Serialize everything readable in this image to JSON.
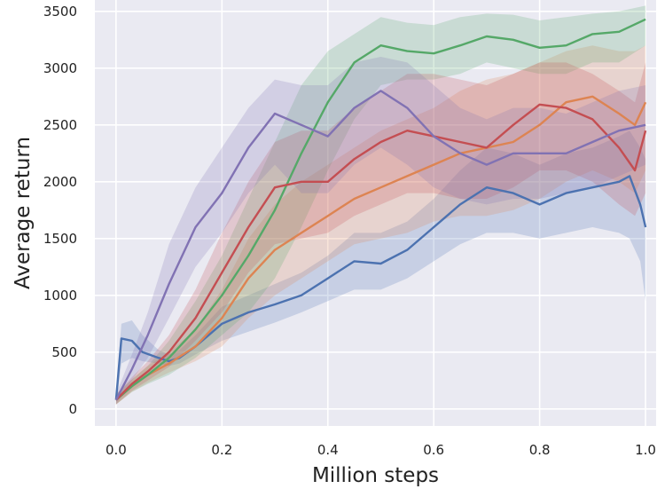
{
  "chart_data": {
    "type": "line",
    "title": "",
    "xlabel": "Million steps",
    "ylabel": "Average return",
    "xlim": [
      -0.04,
      1.02
    ],
    "ylim": [
      -150,
      3600
    ],
    "x_ticks": [
      0.0,
      0.2,
      0.4,
      0.6,
      0.8,
      1.0
    ],
    "x_tick_labels": [
      "0.0",
      "0.2",
      "0.4",
      "0.6",
      "0.8",
      "1.0"
    ],
    "y_ticks": [
      0,
      500,
      1000,
      1500,
      2000,
      2500,
      3000,
      3500
    ],
    "y_tick_labels": [
      "0",
      "500",
      "1000",
      "1500",
      "2000",
      "2500",
      "3000",
      "3500"
    ],
    "grid": true,
    "legend": "none",
    "background_color": "#eaeaf2",
    "series": [
      {
        "color": "#4c72b0",
        "x": [
          0.0,
          0.01,
          0.03,
          0.05,
          0.08,
          0.1,
          0.12,
          0.15,
          0.2,
          0.25,
          0.3,
          0.35,
          0.4,
          0.45,
          0.5,
          0.55,
          0.6,
          0.65,
          0.7,
          0.75,
          0.8,
          0.85,
          0.9,
          0.95,
          0.97,
          0.99,
          1.0
        ],
        "y": [
          80,
          620,
          600,
          500,
          450,
          420,
          450,
          550,
          750,
          850,
          920,
          1000,
          1150,
          1300,
          1280,
          1400,
          1600,
          1800,
          1950,
          1900,
          1800,
          1900,
          1950,
          2000,
          2050,
          1800,
          1600
        ],
        "lower": [
          40,
          400,
          450,
          420,
          400,
          380,
          400,
          480,
          600,
          680,
          760,
          850,
          950,
          1050,
          1050,
          1150,
          1300,
          1450,
          1550,
          1550,
          1500,
          1550,
          1600,
          1550,
          1500,
          1300,
          950
        ],
        "upper": [
          120,
          750,
          780,
          650,
          520,
          480,
          520,
          650,
          900,
          1000,
          1100,
          1200,
          1350,
          1550,
          1550,
          1650,
          1850,
          2100,
          2300,
          2250,
          2150,
          2250,
          2300,
          2400,
          2450,
          2300,
          2200
        ]
      },
      {
        "color": "#dd8452",
        "x": [
          0.0,
          0.03,
          0.06,
          0.1,
          0.15,
          0.2,
          0.25,
          0.3,
          0.35,
          0.4,
          0.45,
          0.5,
          0.55,
          0.6,
          0.65,
          0.7,
          0.75,
          0.8,
          0.85,
          0.9,
          0.95,
          0.98,
          1.0
        ],
        "y": [
          80,
          200,
          300,
          400,
          550,
          800,
          1150,
          1400,
          1550,
          1700,
          1850,
          1950,
          2050,
          2150,
          2250,
          2300,
          2350,
          2500,
          2700,
          2750,
          2600,
          2500,
          2700
        ],
        "lower": [
          40,
          150,
          230,
          320,
          420,
          550,
          800,
          1000,
          1150,
          1300,
          1450,
          1500,
          1550,
          1650,
          1700,
          1700,
          1750,
          1850,
          2000,
          2100,
          2000,
          1900,
          2100
        ],
        "upper": [
          130,
          260,
          380,
          500,
          700,
          1050,
          1500,
          1800,
          2000,
          2150,
          2300,
          2450,
          2550,
          2650,
          2800,
          2900,
          2950,
          3050,
          3150,
          3200,
          3150,
          3150,
          3200
        ]
      },
      {
        "color": "#55a868",
        "x": [
          0.0,
          0.03,
          0.06,
          0.1,
          0.15,
          0.2,
          0.25,
          0.3,
          0.35,
          0.4,
          0.45,
          0.5,
          0.55,
          0.6,
          0.65,
          0.7,
          0.75,
          0.8,
          0.85,
          0.9,
          0.95,
          1.0
        ],
        "y": [
          80,
          200,
          300,
          450,
          700,
          1000,
          1350,
          1750,
          2250,
          2700,
          3050,
          3200,
          3150,
          3130,
          3200,
          3280,
          3250,
          3180,
          3200,
          3300,
          3320,
          3430
        ],
        "lower": [
          40,
          150,
          220,
          300,
          450,
          650,
          850,
          1150,
          1600,
          2100,
          2550,
          2850,
          2900,
          2900,
          2950,
          3050,
          3000,
          2950,
          2950,
          3050,
          3050,
          3200
        ],
        "upper": [
          130,
          260,
          380,
          600,
          950,
          1350,
          1850,
          2350,
          2850,
          3150,
          3300,
          3450,
          3400,
          3380,
          3450,
          3480,
          3470,
          3420,
          3450,
          3480,
          3500,
          3550
        ]
      },
      {
        "color": "#c44e52",
        "x": [
          0.0,
          0.03,
          0.06,
          0.1,
          0.15,
          0.2,
          0.25,
          0.3,
          0.35,
          0.4,
          0.45,
          0.5,
          0.55,
          0.6,
          0.65,
          0.7,
          0.75,
          0.8,
          0.85,
          0.9,
          0.95,
          0.98,
          1.0
        ],
        "y": [
          80,
          220,
          330,
          500,
          800,
          1200,
          1600,
          1950,
          2000,
          2000,
          2200,
          2350,
          2450,
          2400,
          2350,
          2300,
          2500,
          2680,
          2650,
          2550,
          2300,
          2100,
          2450
        ],
        "lower": [
          40,
          160,
          250,
          370,
          600,
          850,
          1200,
          1450,
          1500,
          1550,
          1700,
          1800,
          1900,
          1900,
          1850,
          1850,
          1950,
          2100,
          2100,
          2000,
          1800,
          1700,
          1900
        ],
        "upper": [
          130,
          280,
          420,
          650,
          1050,
          1550,
          2000,
          2350,
          2450,
          2450,
          2650,
          2800,
          2950,
          2950,
          2900,
          2850,
          2950,
          3050,
          3050,
          2950,
          2800,
          2700,
          3050
        ]
      },
      {
        "color": "#8172b3",
        "x": [
          0.0,
          0.03,
          0.06,
          0.1,
          0.15,
          0.2,
          0.25,
          0.3,
          0.35,
          0.4,
          0.45,
          0.5,
          0.55,
          0.6,
          0.65,
          0.7,
          0.75,
          0.8,
          0.85,
          0.9,
          0.95,
          1.0
        ],
        "y": [
          80,
          350,
          650,
          1100,
          1600,
          1900,
          2300,
          2600,
          2500,
          2400,
          2650,
          2800,
          2650,
          2400,
          2250,
          2150,
          2250,
          2250,
          2250,
          2350,
          2450,
          2500
        ],
        "lower": [
          40,
          250,
          450,
          800,
          1250,
          1550,
          1900,
          2150,
          1900,
          1900,
          2150,
          2300,
          2150,
          1950,
          1850,
          1800,
          1850,
          1850,
          1900,
          1950,
          2050,
          2150
        ],
        "upper": [
          130,
          480,
          850,
          1450,
          1950,
          2300,
          2650,
          2900,
          2850,
          2850,
          3050,
          3100,
          3050,
          2850,
          2650,
          2550,
          2650,
          2650,
          2600,
          2700,
          2800,
          2850
        ]
      }
    ]
  }
}
